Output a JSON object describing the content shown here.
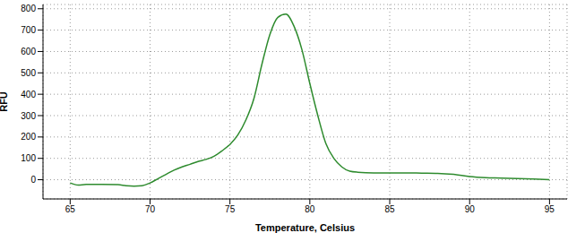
{
  "chart_data": {
    "type": "line",
    "x_label": "Temperature, Celsius",
    "y_label": "RFU",
    "color": "#2e8b2e",
    "grid": true,
    "xlim": [
      63.3,
      96.1
    ],
    "ylim": [
      -90,
      820
    ],
    "xticks": [
      65,
      70,
      75,
      80,
      85,
      90,
      95
    ],
    "yticks": [
      0,
      100,
      200,
      300,
      400,
      500,
      600,
      700,
      800
    ],
    "x": [
      65,
      65.5,
      66,
      67,
      68,
      68.5,
      69,
      69.5,
      70,
      70.5,
      71,
      71.5,
      72,
      72.5,
      73,
      73.5,
      74,
      74.5,
      75,
      75.5,
      76,
      76.5,
      77,
      77.5,
      78,
      78.5,
      79,
      79.5,
      80,
      80.5,
      81,
      81.5,
      82,
      82.5,
      83,
      84,
      85,
      86,
      87,
      88,
      89,
      90,
      91,
      92,
      93,
      94,
      95
    ],
    "values": [
      -15,
      -25,
      -22,
      -22,
      -23,
      -28,
      -30,
      -28,
      -15,
      5,
      25,
      45,
      60,
      72,
      85,
      95,
      110,
      135,
      165,
      210,
      280,
      380,
      540,
      680,
      760,
      775,
      720,
      610,
      450,
      300,
      170,
      100,
      60,
      40,
      35,
      32,
      32,
      32,
      31,
      30,
      25,
      15,
      10,
      8,
      5,
      3,
      0
    ]
  }
}
